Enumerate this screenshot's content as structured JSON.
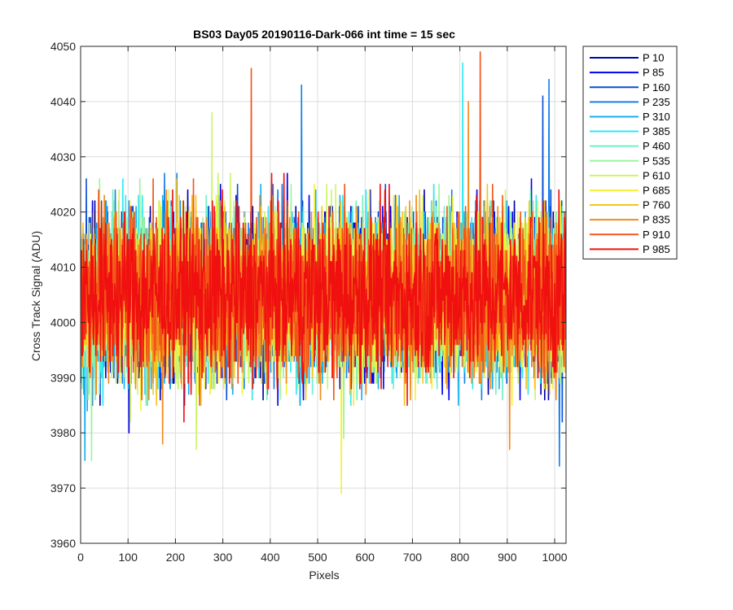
{
  "chart_data": {
    "type": "line",
    "title": "BS03 Day05 20190116-Dark-066 int time = 15 sec",
    "xlabel": "Pixels",
    "ylabel": "Cross Track Signal (ADU)",
    "xlim": [
      0,
      1024
    ],
    "ylim": [
      3960,
      4050
    ],
    "xticks": [
      0,
      100,
      200,
      300,
      400,
      500,
      600,
      700,
      800,
      900,
      1000
    ],
    "yticks": [
      3960,
      3970,
      3980,
      3990,
      4000,
      4010,
      4020,
      4030,
      4040,
      4050
    ],
    "grid": true,
    "legend_position": "outside-right",
    "noise": {
      "n_points": 1024,
      "center": 4005,
      "spread": 7.5,
      "min": 3969,
      "max": 4049
    },
    "series": [
      {
        "name": "P 10",
        "color": "#0000aa"
      },
      {
        "name": "P 85",
        "color": "#0000ee"
      },
      {
        "name": "P 160",
        "color": "#0a4fd6"
      },
      {
        "name": "P 235",
        "color": "#1380e8"
      },
      {
        "name": "P 310",
        "color": "#14b0f0"
      },
      {
        "name": "P 385",
        "color": "#2ee8f0"
      },
      {
        "name": "P 460",
        "color": "#6ff0c8"
      },
      {
        "name": "P 535",
        "color": "#9cf59a"
      },
      {
        "name": "P 610",
        "color": "#cdf56a"
      },
      {
        "name": "P 685",
        "color": "#f2f23a"
      },
      {
        "name": "P 760",
        "color": "#f6c51c"
      },
      {
        "name": "P 835",
        "color": "#f38a1c"
      },
      {
        "name": "P 910",
        "color": "#f25418"
      },
      {
        "name": "P 985",
        "color": "#f01010"
      }
    ],
    "spikes": [
      {
        "series": 12,
        "x": 843,
        "y": 4049
      },
      {
        "series": 5,
        "x": 806,
        "y": 4047
      },
      {
        "series": 12,
        "x": 360,
        "y": 4046
      },
      {
        "series": 3,
        "x": 466,
        "y": 4043
      },
      {
        "series": 3,
        "x": 988,
        "y": 4044
      },
      {
        "series": 2,
        "x": 975,
        "y": 4041
      },
      {
        "series": 11,
        "x": 818,
        "y": 4040
      },
      {
        "series": 8,
        "x": 277,
        "y": 4038
      },
      {
        "series": 9,
        "x": 550,
        "y": 3969
      },
      {
        "series": 3,
        "x": 1010,
        "y": 3974
      },
      {
        "series": 4,
        "x": 9,
        "y": 3975
      },
      {
        "series": 7,
        "x": 23,
        "y": 3975
      },
      {
        "series": 11,
        "x": 173,
        "y": 3978
      },
      {
        "series": 8,
        "x": 244,
        "y": 3977
      },
      {
        "series": 11,
        "x": 905,
        "y": 3977
      },
      {
        "series": 1,
        "x": 102,
        "y": 3980
      },
      {
        "series": 7,
        "x": 555,
        "y": 3979
      }
    ]
  }
}
